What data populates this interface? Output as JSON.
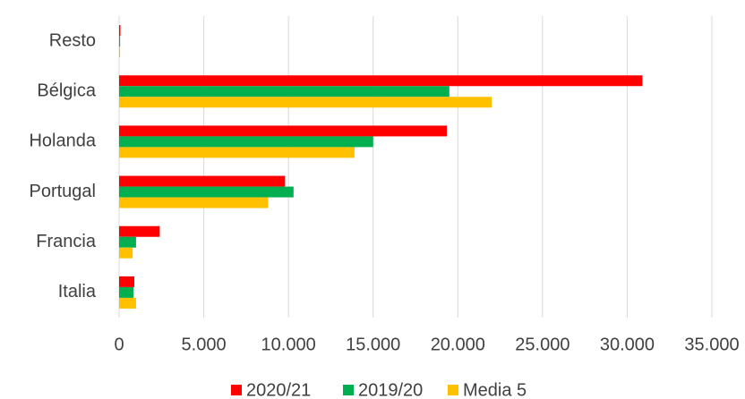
{
  "chart_data": {
    "type": "bar",
    "orientation": "horizontal",
    "categories": [
      "Resto",
      "Bélgica",
      "Holanda",
      "Portugal",
      "Francia",
      "Italia"
    ],
    "series": [
      {
        "name": "2020/21",
        "color": "#ff0000",
        "values": [
          80,
          30900,
          19350,
          9800,
          2400,
          900
        ]
      },
      {
        "name": "2019/20",
        "color": "#00b050",
        "values": [
          60,
          19500,
          15000,
          10300,
          1000,
          850
        ]
      },
      {
        "name": "Media 5",
        "color": "#ffc000",
        "values": [
          60,
          22000,
          13900,
          8800,
          800,
          1000
        ]
      }
    ],
    "xlim": [
      0,
      35000
    ],
    "xticks": [
      0,
      {
        "value": 5000,
        "label": "5.000"
      },
      {
        "value": 10000,
        "label": "10.000"
      },
      {
        "value": 15000,
        "label": "15.000"
      },
      {
        "value": 20000,
        "label": "20.000"
      },
      {
        "value": 25000,
        "label": "25.000"
      },
      {
        "value": 30000,
        "label": "30.000"
      },
      {
        "value": 35000,
        "label": "35.000"
      }
    ],
    "grid": true,
    "legend": "bottom"
  }
}
